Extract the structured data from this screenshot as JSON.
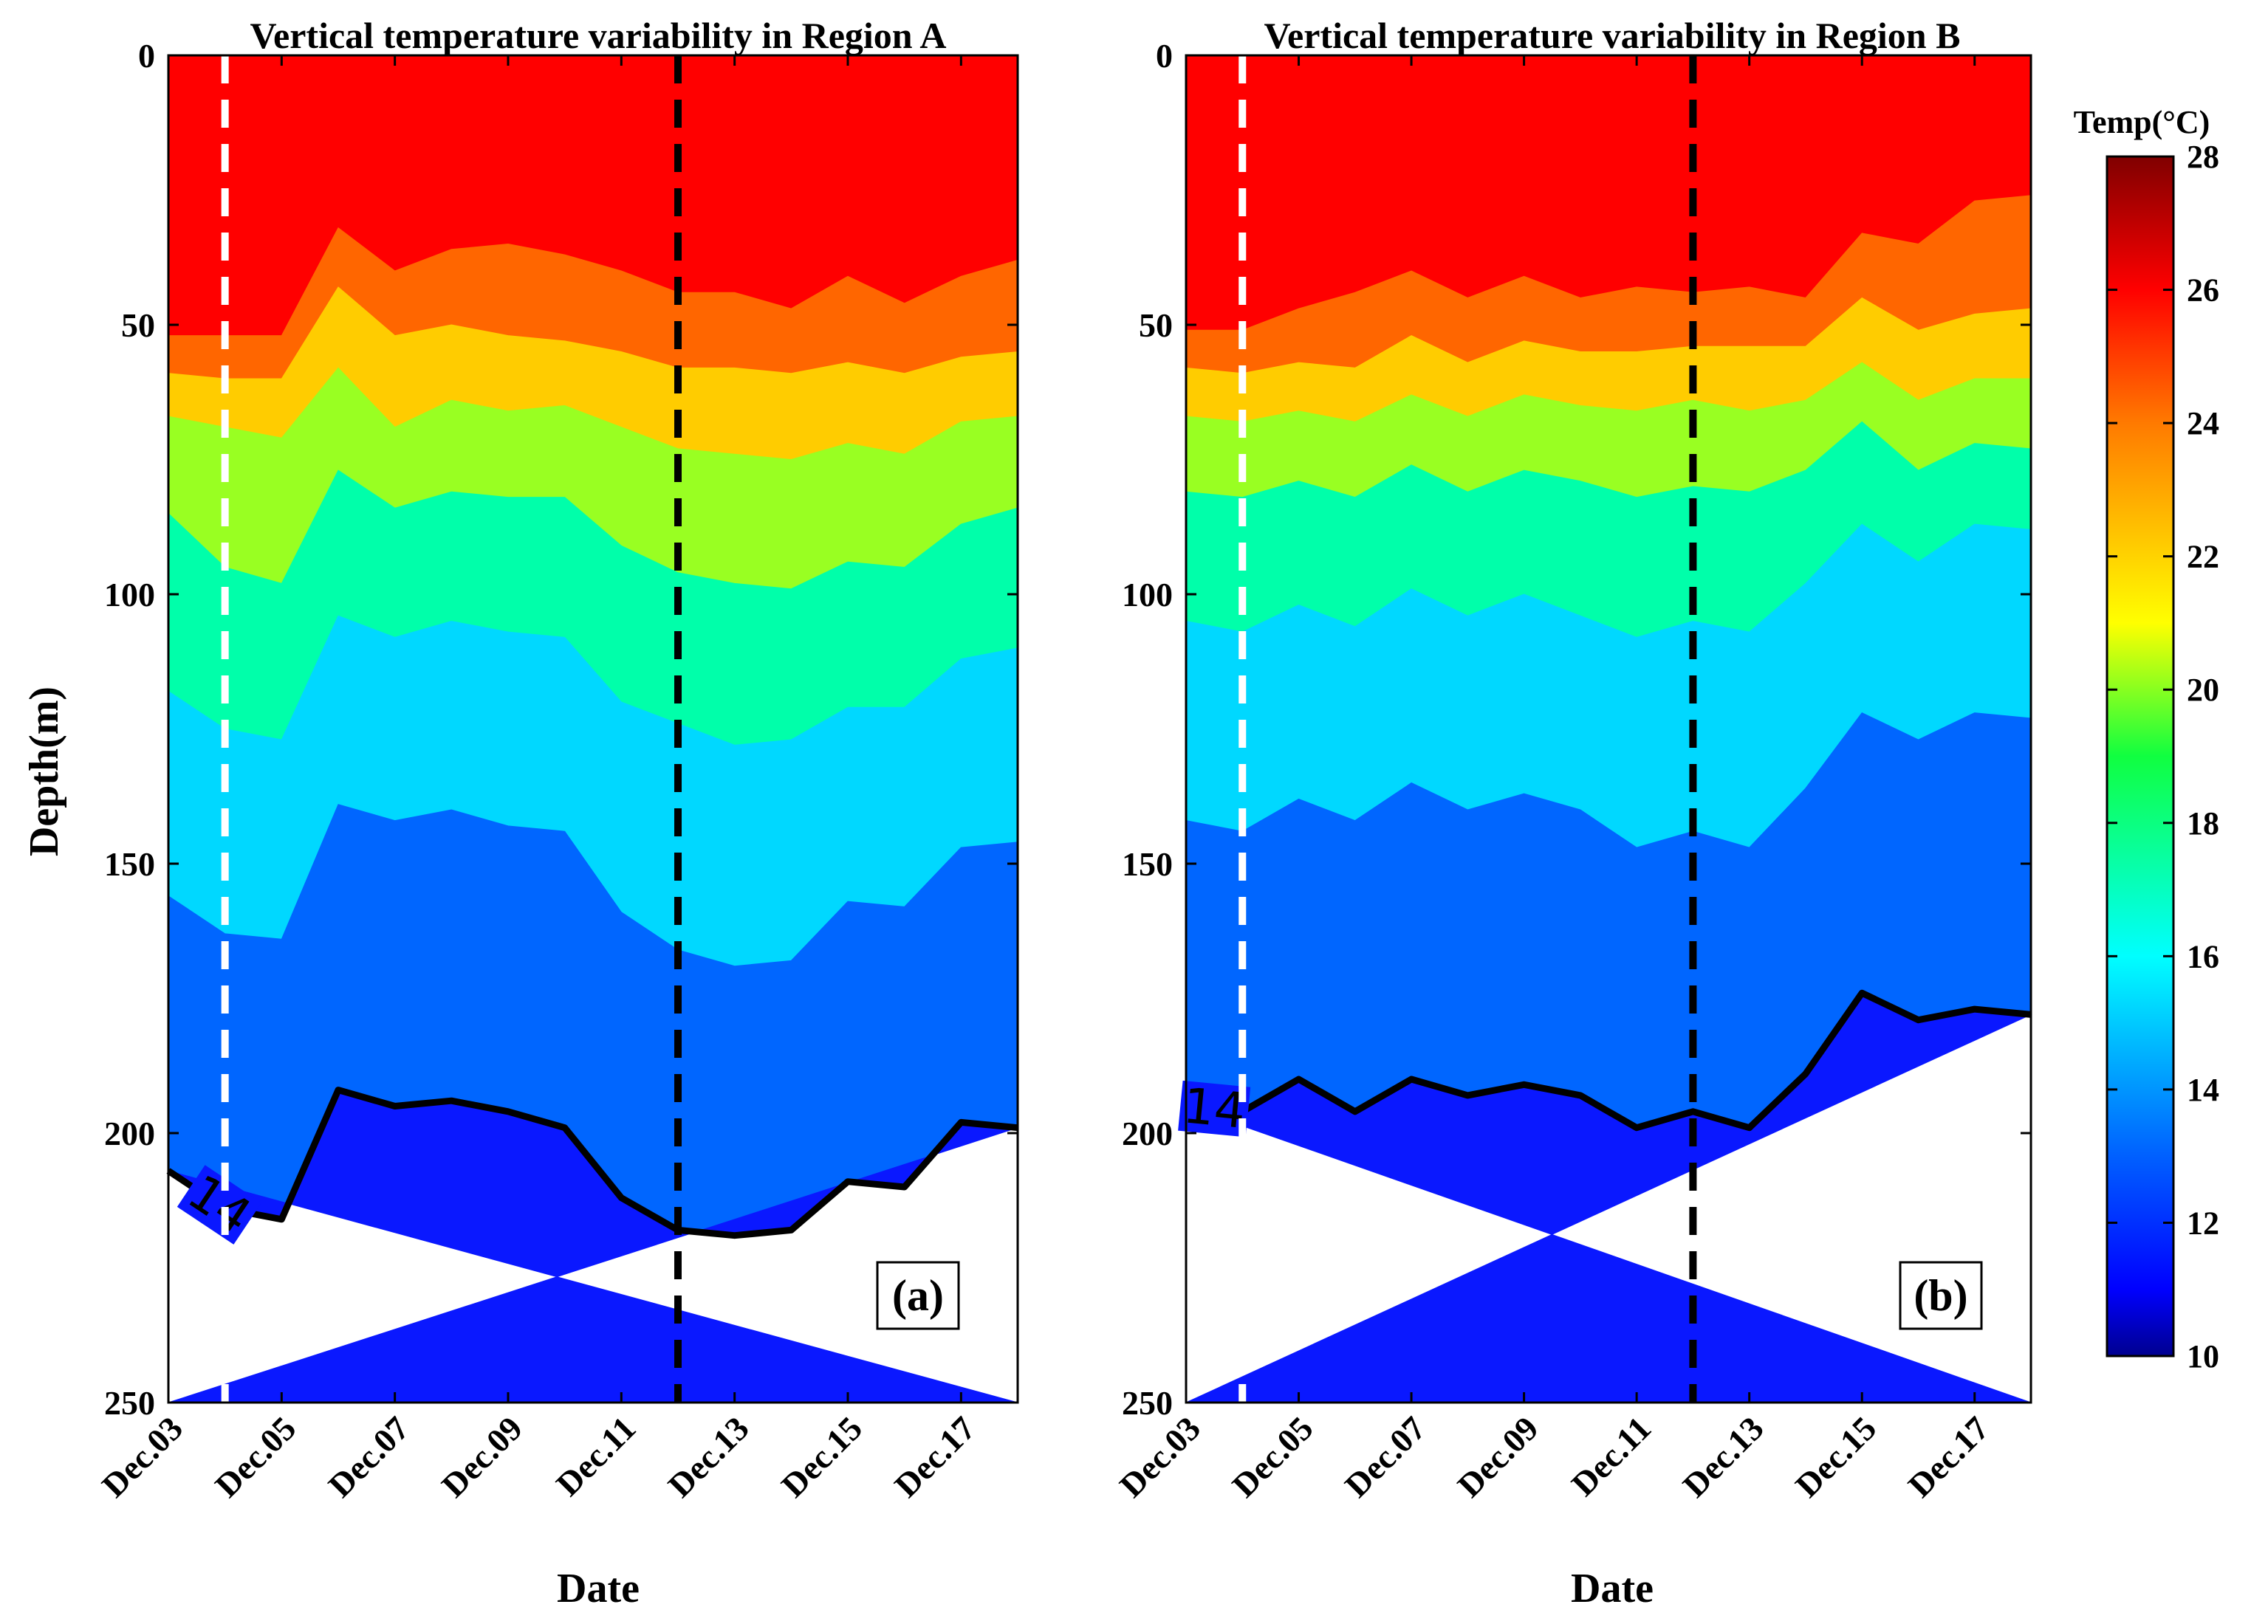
{
  "chart_data": [
    {
      "type": "filled-contour",
      "title": "Vertical temperature variability in Region A",
      "panel_label": "(a)",
      "xlabel": "Date",
      "ylabel": "Depth(m)",
      "x_tick_labels": [
        "Dec.03",
        "Dec.05",
        "Dec.07",
        "Dec.09",
        "Dec.11",
        "Dec.13",
        "Dec.15",
        "Dec.17"
      ],
      "x_tick_values": [
        3,
        5,
        7,
        9,
        11,
        13,
        15,
        17
      ],
      "y_tick_labels": [
        "0",
        "50",
        "100",
        "150",
        "200",
        "250"
      ],
      "y_tick_values": [
        0,
        50,
        100,
        150,
        200,
        250
      ],
      "xlim": [
        3,
        18
      ],
      "ylim": [
        0,
        250
      ],
      "y_reversed": true,
      "x": [
        3,
        4,
        5,
        6,
        7,
        8,
        9,
        10,
        11,
        12,
        13,
        14,
        15,
        16,
        17,
        18
      ],
      "isotherms": [
        {
          "temp": 26,
          "depth": [
            52,
            52,
            52,
            32,
            40,
            36,
            35,
            37,
            40,
            44,
            44,
            47,
            41,
            46,
            41,
            38
          ]
        },
        {
          "temp": 24,
          "depth": [
            59,
            60,
            60,
            43,
            52,
            50,
            52,
            53,
            55,
            58,
            58,
            59,
            57,
            59,
            56,
            55
          ]
        },
        {
          "temp": 22,
          "depth": [
            67,
            69,
            71,
            58,
            69,
            64,
            66,
            65,
            69,
            73,
            74,
            75,
            72,
            74,
            68,
            67
          ]
        },
        {
          "temp": 20,
          "depth": [
            85,
            95,
            98,
            77,
            84,
            81,
            82,
            82,
            91,
            96,
            98,
            99,
            94,
            95,
            87,
            84
          ]
        },
        {
          "temp": 18,
          "depth": [
            118,
            125,
            127,
            104,
            108,
            105,
            107,
            108,
            120,
            124,
            128,
            127,
            121,
            121,
            112,
            110
          ]
        },
        {
          "temp": 16,
          "depth": [
            156,
            163,
            164,
            139,
            142,
            140,
            143,
            144,
            159,
            166,
            169,
            168,
            157,
            158,
            147,
            146
          ]
        },
        {
          "temp": 14,
          "depth": [
            207,
            214,
            216,
            192,
            195,
            194,
            196,
            199,
            212,
            218,
            219,
            218,
            209,
            210,
            198,
            199
          ]
        }
      ],
      "contour_line": {
        "temp": 14,
        "label": "14"
      },
      "vertical_markers": [
        {
          "x": 4,
          "color": "#ffffff",
          "style": "dashed"
        },
        {
          "x": 12,
          "color": "#000000",
          "style": "dashed"
        }
      ]
    },
    {
      "type": "filled-contour",
      "title": "Vertical temperature variability in Region B",
      "panel_label": "(b)",
      "xlabel": "Date",
      "ylabel": "",
      "x_tick_labels": [
        "Dec.03",
        "Dec.05",
        "Dec.07",
        "Dec.09",
        "Dec.11",
        "Dec.13",
        "Dec.15",
        "Dec.17"
      ],
      "x_tick_values": [
        3,
        5,
        7,
        9,
        11,
        13,
        15,
        17
      ],
      "y_tick_labels": [
        "0",
        "50",
        "100",
        "150",
        "200",
        "250"
      ],
      "y_tick_values": [
        0,
        50,
        100,
        150,
        200,
        250
      ],
      "xlim": [
        3,
        18
      ],
      "ylim": [
        0,
        250
      ],
      "y_reversed": true,
      "x": [
        3,
        4,
        5,
        6,
        7,
        8,
        9,
        10,
        11,
        12,
        13,
        14,
        15,
        16,
        17,
        18
      ],
      "isotherms": [
        {
          "temp": 26,
          "depth": [
            51,
            51,
            47,
            44,
            40,
            45,
            41,
            45,
            43,
            44,
            43,
            45,
            33,
            35,
            27,
            26
          ]
        },
        {
          "temp": 24,
          "depth": [
            58,
            59,
            57,
            58,
            52,
            57,
            53,
            55,
            55,
            54,
            54,
            54,
            45,
            51,
            48,
            47
          ]
        },
        {
          "temp": 22,
          "depth": [
            67,
            68,
            66,
            68,
            63,
            67,
            63,
            65,
            66,
            64,
            66,
            64,
            57,
            64,
            60,
            60
          ]
        },
        {
          "temp": 20,
          "depth": [
            81,
            82,
            79,
            82,
            76,
            81,
            77,
            79,
            82,
            80,
            81,
            77,
            68,
            77,
            72,
            73
          ]
        },
        {
          "temp": 18,
          "depth": [
            105,
            107,
            102,
            106,
            99,
            104,
            100,
            104,
            108,
            105,
            107,
            98,
            87,
            94,
            87,
            88
          ]
        },
        {
          "temp": 16,
          "depth": [
            142,
            144,
            138,
            142,
            135,
            140,
            137,
            140,
            147,
            144,
            147,
            136,
            122,
            127,
            122,
            123
          ]
        },
        {
          "temp": 14,
          "depth": [
            195,
            196,
            190,
            196,
            190,
            193,
            191,
            193,
            199,
            196,
            199,
            189,
            174,
            179,
            177,
            178
          ]
        }
      ],
      "contour_line": {
        "temp": 14,
        "label": "14"
      },
      "vertical_markers": [
        {
          "x": 4,
          "color": "#ffffff",
          "style": "dashed"
        },
        {
          "x": 12,
          "color": "#000000",
          "style": "dashed"
        }
      ]
    }
  ],
  "colorbar": {
    "title": "Temp(°C)",
    "range": [
      10,
      28
    ],
    "tick_labels": [
      "10",
      "12",
      "14",
      "16",
      "18",
      "20",
      "22",
      "24",
      "26",
      "28"
    ],
    "tick_values": [
      10,
      12,
      14,
      16,
      18,
      20,
      22,
      24,
      26,
      28
    ]
  },
  "fill_colors": {
    "above_26": "#ff0000",
    "24_26": "#ff6600",
    "22_24": "#ffcc00",
    "20_22": "#99ff22",
    "18_20": "#00ffaa",
    "16_18": "#00d8ff",
    "14_16": "#0066ff",
    "below_14": "#0a18ff"
  },
  "colormap_stops": [
    {
      "v": 10,
      "color": "#00008f"
    },
    {
      "v": 11,
      "color": "#0000ff"
    },
    {
      "v": 13,
      "color": "#0060ff"
    },
    {
      "v": 16,
      "color": "#00ffff"
    },
    {
      "v": 19,
      "color": "#10ff40"
    },
    {
      "v": 21,
      "color": "#ffff00"
    },
    {
      "v": 24,
      "color": "#ff7a00"
    },
    {
      "v": 26,
      "color": "#ff0000"
    },
    {
      "v": 28,
      "color": "#800000"
    }
  ]
}
